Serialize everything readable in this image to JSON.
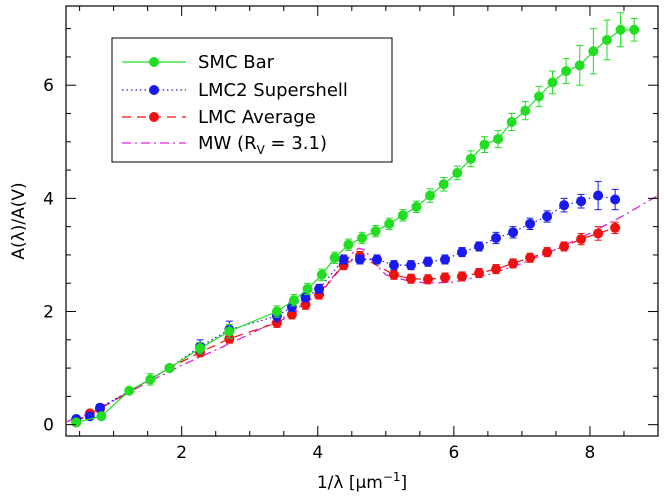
{
  "chart_data": {
    "type": "line",
    "xlabel": "1/λ [μm",
    "xlabel_sup": "−1",
    "xlabel_close": "]",
    "ylabel": "A(λ)/A(V)",
    "xlim": [
      0.3,
      9.0
    ],
    "ylim": [
      -0.2,
      7.4
    ],
    "xticks": [
      2,
      4,
      6,
      8
    ],
    "yticks": [
      0,
      2,
      4,
      6
    ],
    "grid": false,
    "legend_position": "top-left",
    "series": [
      {
        "name": "SMC Bar",
        "color": "#22dd22",
        "line": "solid",
        "marker": "circle",
        "x": [
          0.45,
          0.82,
          1.23,
          1.54,
          1.82,
          2.27,
          2.7,
          3.4,
          3.65,
          3.85,
          4.06,
          4.25,
          4.45,
          4.65,
          4.85,
          5.05,
          5.25,
          5.45,
          5.65,
          5.85,
          6.05,
          6.25,
          6.45,
          6.65,
          6.85,
          7.05,
          7.25,
          7.45,
          7.65,
          7.85,
          8.05,
          8.25,
          8.45,
          8.65
        ],
        "y": [
          0.04,
          0.15,
          0.6,
          0.8,
          1.0,
          1.35,
          1.65,
          2.0,
          2.2,
          2.4,
          2.65,
          2.95,
          3.18,
          3.3,
          3.42,
          3.55,
          3.7,
          3.85,
          4.05,
          4.25,
          4.45,
          4.7,
          4.95,
          5.05,
          5.35,
          5.55,
          5.8,
          6.05,
          6.25,
          6.35,
          6.6,
          6.8,
          6.98,
          6.98
        ],
        "err": [
          0.05,
          0.05,
          0.06,
          0.1,
          0.06,
          0.1,
          0.12,
          0.1,
          0.1,
          0.1,
          0.1,
          0.1,
          0.1,
          0.1,
          0.1,
          0.1,
          0.1,
          0.1,
          0.12,
          0.12,
          0.12,
          0.14,
          0.14,
          0.15,
          0.15,
          0.16,
          0.18,
          0.2,
          0.22,
          0.35,
          0.4,
          0.35,
          0.3,
          0.2
        ]
      },
      {
        "name": "LMC2 Supershell",
        "color": "#1a1aee",
        "line": "dotted",
        "marker": "circle",
        "x": [
          0.45,
          0.65,
          0.8,
          1.82,
          2.27,
          2.7,
          3.4,
          3.62,
          3.82,
          4.02,
          4.38,
          4.62,
          4.87,
          5.12,
          5.37,
          5.62,
          5.87,
          6.12,
          6.37,
          6.62,
          6.87,
          7.12,
          7.37,
          7.62,
          7.87,
          8.12,
          8.37
        ],
        "y": [
          0.1,
          0.15,
          0.3,
          1.0,
          1.38,
          1.68,
          1.92,
          2.08,
          2.25,
          2.4,
          2.92,
          2.92,
          2.92,
          2.82,
          2.82,
          2.88,
          2.92,
          3.05,
          3.15,
          3.3,
          3.4,
          3.55,
          3.68,
          3.88,
          3.95,
          4.05,
          3.98
        ],
        "err": [
          0.05,
          0.05,
          0.06,
          0.05,
          0.12,
          0.15,
          0.1,
          0.08,
          0.08,
          0.08,
          0.08,
          0.08,
          0.08,
          0.08,
          0.08,
          0.08,
          0.08,
          0.08,
          0.08,
          0.1,
          0.1,
          0.1,
          0.1,
          0.12,
          0.12,
          0.25,
          0.18
        ]
      },
      {
        "name": "LMC Average",
        "color": "#ee1111",
        "line": "dashed",
        "marker": "circle",
        "x": [
          0.45,
          0.65,
          0.8,
          1.82,
          2.27,
          2.7,
          3.4,
          3.62,
          3.82,
          4.02,
          4.38,
          4.62,
          5.12,
          5.37,
          5.62,
          5.87,
          6.12,
          6.37,
          6.62,
          6.87,
          7.12,
          7.37,
          7.62,
          7.87,
          8.12,
          8.37
        ],
        "y": [
          0.04,
          0.2,
          0.28,
          1.0,
          1.28,
          1.52,
          1.8,
          1.95,
          2.12,
          2.3,
          2.82,
          2.98,
          2.65,
          2.58,
          2.57,
          2.6,
          2.62,
          2.68,
          2.75,
          2.85,
          2.95,
          3.05,
          3.15,
          3.28,
          3.38,
          3.48
        ],
        "err": [
          0.05,
          0.05,
          0.05,
          0.05,
          0.08,
          0.08,
          0.08,
          0.08,
          0.08,
          0.08,
          0.08,
          0.08,
          0.08,
          0.08,
          0.08,
          0.08,
          0.08,
          0.08,
          0.08,
          0.08,
          0.08,
          0.08,
          0.08,
          0.1,
          0.12,
          0.1
        ]
      },
      {
        "name": "MW (R",
        "name_sub": "V",
        "name_rest": " = 3.1)",
        "color": "#dd22dd",
        "line": "dashdot",
        "marker": "none",
        "x": [
          0.3,
          0.6,
          1.0,
          1.5,
          2.0,
          2.5,
          3.0,
          3.5,
          4.0,
          4.3,
          4.5,
          4.6,
          4.7,
          4.8,
          5.0,
          5.3,
          5.6,
          6.0,
          6.5,
          7.0,
          7.5,
          8.0,
          8.5,
          9.0
        ],
        "y": [
          0.05,
          0.18,
          0.42,
          0.75,
          1.05,
          1.32,
          1.6,
          1.9,
          2.3,
          2.72,
          3.02,
          3.12,
          3.08,
          2.9,
          2.65,
          2.55,
          2.5,
          2.52,
          2.65,
          2.85,
          3.1,
          3.38,
          3.7,
          4.05
        ]
      }
    ]
  }
}
